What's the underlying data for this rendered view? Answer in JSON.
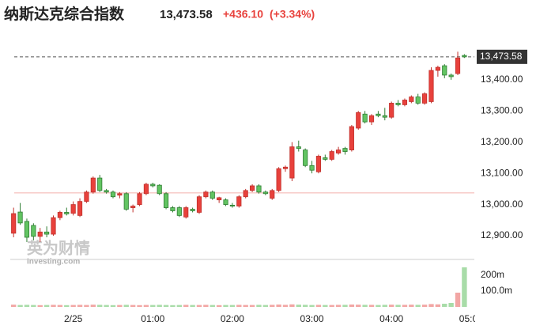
{
  "chart_data": {
    "type": "candlestick",
    "title": "纳斯达克综合指数",
    "last_price": {
      "value": 13473.58,
      "label": "13,473.58"
    },
    "change": "+436.10",
    "change_percent": "(+3.34%)",
    "previous_close": 13037.48,
    "watermark": [
      "英为财情",
      "Investing.com"
    ],
    "up_color": "#e8413c",
    "down_color": "#62c462",
    "volume_up_color": "#f2a6a4",
    "volume_down_color": "#a8dca8",
    "xlim": [
      -0.5,
      69.5
    ],
    "xticks": [
      {
        "value": 9,
        "label": "2/25"
      },
      {
        "value": 21,
        "label": "01:00"
      },
      {
        "value": 33,
        "label": "02:00"
      },
      {
        "value": 45,
        "label": "03:00"
      },
      {
        "value": 57,
        "label": "04:00"
      },
      {
        "value": 69,
        "label": "05:00"
      }
    ],
    "ylim": [
      12824,
      13567
    ],
    "yticks": [
      {
        "value": 12900,
        "label": "12,900.00"
      },
      {
        "value": 13000,
        "label": "13,000.00"
      },
      {
        "value": 13100,
        "label": "13,100.00"
      },
      {
        "value": 13200,
        "label": "13,200.00"
      },
      {
        "value": 13300,
        "label": "13,300.00"
      },
      {
        "value": 13400,
        "label": "13,400.00"
      }
    ],
    "open": [
      12908,
      12976,
      12946,
      12933,
      12898,
      12912,
      12905,
      12958,
      12975,
      12972,
      12965,
      13010,
      13040,
      13085,
      13045,
      13040,
      13030,
      13035,
      12990,
      13000,
      13035,
      13065,
      13062,
      13035,
      12990,
      12990,
      12960,
      12985,
      12975,
      13025,
      13040,
      13015,
      13015,
      12998,
      12995,
      13025,
      13045,
      13060,
      13040,
      13020,
      13045,
      13115,
      13085,
      13185,
      13175,
      13125,
      13105,
      13150,
      13145,
      13165,
      13180,
      13175,
      13245,
      13290,
      13265,
      13290,
      13285,
      13280,
      13325,
      13320,
      13330,
      13345,
      13325,
      13330,
      13430,
      13445,
      13415,
      13420,
      13478
    ],
    "high": [
      12990,
      13005,
      12955,
      12940,
      12925,
      12930,
      12965,
      12980,
      12990,
      13010,
      13020,
      13045,
      13090,
      13095,
      13050,
      13045,
      13040,
      13040,
      13000,
      13040,
      13070,
      13070,
      13065,
      13040,
      12995,
      12995,
      12995,
      12990,
      13030,
      13045,
      13045,
      13025,
      13020,
      13005,
      13030,
      13050,
      13065,
      13065,
      13045,
      13050,
      13120,
      13125,
      13200,
      13205,
      13180,
      13140,
      13160,
      13160,
      13175,
      13185,
      13185,
      13255,
      13300,
      13300,
      13290,
      13300,
      13310,
      13330,
      13335,
      13340,
      13350,
      13355,
      13360,
      13440,
      13445,
      13450,
      13420,
      13490,
      13482
    ],
    "low": [
      12895,
      12935,
      12880,
      12885,
      12880,
      12895,
      12900,
      12950,
      12965,
      12965,
      12960,
      13005,
      13035,
      13040,
      13035,
      13020,
      13020,
      12980,
      12975,
      12995,
      13030,
      13055,
      13030,
      12985,
      12975,
      12960,
      12955,
      12975,
      12970,
      13020,
      13015,
      13005,
      12995,
      12990,
      12990,
      13020,
      13040,
      13035,
      13030,
      13015,
      13040,
      13105,
      13075,
      13170,
      13120,
      13100,
      13100,
      13140,
      13140,
      13160,
      13160,
      13170,
      13240,
      13260,
      13255,
      13280,
      13270,
      13275,
      13315,
      13315,
      13325,
      13320,
      13320,
      13325,
      13410,
      13405,
      13400,
      13415,
      13470
    ],
    "close": [
      12971,
      12941,
      12895,
      12898,
      12912,
      12905,
      12958,
      12975,
      12970,
      13000,
      13010,
      13040,
      13085,
      13045,
      13040,
      13025,
      13035,
      12985,
      12995,
      13035,
      13065,
      13060,
      13035,
      12990,
      12980,
      12965,
      12990,
      12980,
      13025,
      13040,
      13020,
      13022,
      13000,
      12995,
      13025,
      13045,
      13060,
      13040,
      13035,
      13045,
      13115,
      13120,
      13185,
      13180,
      13125,
      13110,
      13155,
      13145,
      13170,
      13175,
      13170,
      13250,
      13295,
      13265,
      13285,
      13285,
      13280,
      13325,
      13320,
      13335,
      13345,
      13325,
      13355,
      13430,
      13440,
      13415,
      13410,
      13470,
      13473.58
    ],
    "volume": [
      14,
      12,
      13,
      12,
      11,
      12,
      13,
      12,
      11,
      12,
      13,
      12,
      14,
      13,
      12,
      11,
      12,
      13,
      12,
      11,
      12,
      12,
      13,
      12,
      11,
      12,
      13,
      12,
      12,
      13,
      12,
      11,
      12,
      12,
      13,
      12,
      12,
      13,
      12,
      13,
      15,
      13,
      16,
      14,
      13,
      12,
      13,
      12,
      12,
      13,
      13,
      15,
      14,
      13,
      13,
      12,
      13,
      14,
      13,
      13,
      14,
      13,
      14,
      18,
      16,
      20,
      25,
      90,
      250
    ],
    "volume_ylim": [
      0,
      290
    ],
    "volume_yticks": [
      {
        "value": 100,
        "label": "100.0m"
      },
      {
        "value": 200,
        "label": "200m"
      }
    ]
  }
}
